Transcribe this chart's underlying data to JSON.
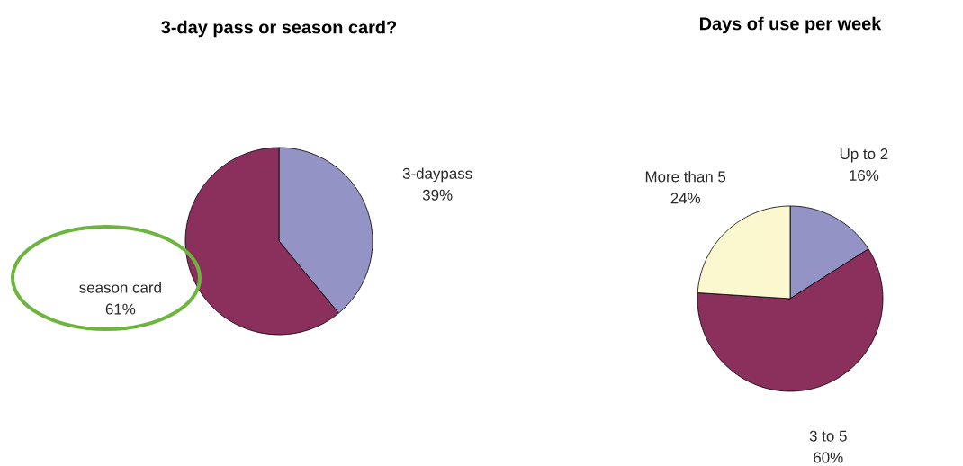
{
  "chart_data": [
    {
      "type": "pie",
      "title": "3-day pass or season card?",
      "categories": [
        "3-daypass",
        "season card"
      ],
      "values": [
        39,
        61
      ],
      "colors": [
        "#9393c6",
        "#8b2f5c"
      ],
      "value_labels": [
        "39%",
        "61%"
      ]
    },
    {
      "type": "pie",
      "title": "Days of use per week",
      "categories": [
        "Up to 2",
        "3 to 5",
        "More than 5"
      ],
      "values": [
        16,
        60,
        24
      ],
      "colors": [
        "#9393c6",
        "#8b2f5c",
        "#fbf8d0"
      ],
      "value_labels": [
        "16%",
        "60%",
        "24%"
      ]
    }
  ]
}
